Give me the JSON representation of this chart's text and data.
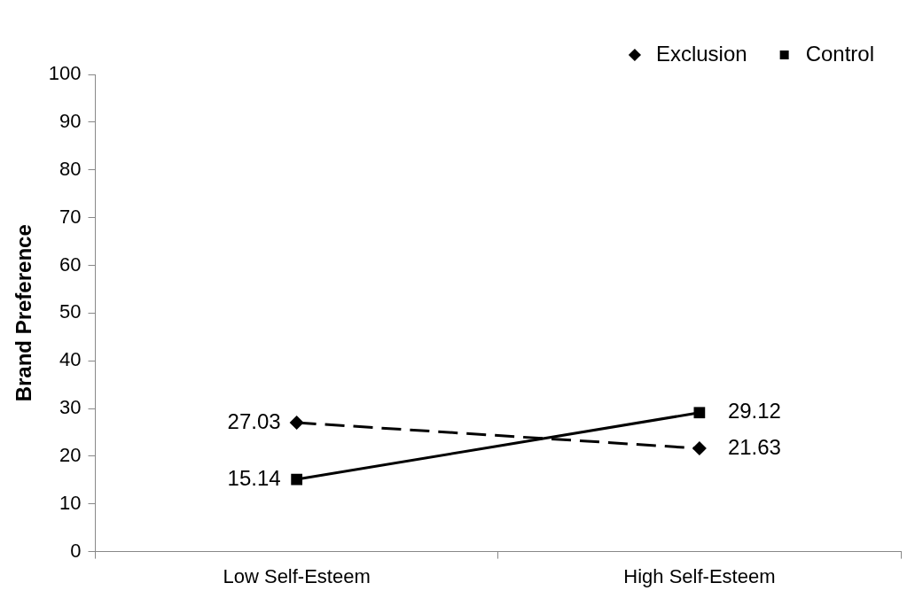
{
  "chart_data": {
    "type": "line",
    "ylabel": "Brand Preference",
    "categories": [
      "Low Self-Esteem",
      "High Self-Esteem"
    ],
    "series": [
      {
        "name": "Exclusion",
        "color": "#000000",
        "values": [
          27.03,
          21.63
        ],
        "marker": "diamond",
        "line_style": "dashed"
      },
      {
        "name": "Control",
        "color": "#000000",
        "values": [
          15.14,
          29.12
        ],
        "marker": "square",
        "line_style": "solid"
      }
    ],
    "ylim": [
      0,
      100
    ],
    "yticks": [
      0,
      10,
      20,
      30,
      40,
      50,
      60,
      70,
      80,
      90,
      100
    ],
    "grid": false,
    "legend": "top right",
    "data_labels": true
  }
}
